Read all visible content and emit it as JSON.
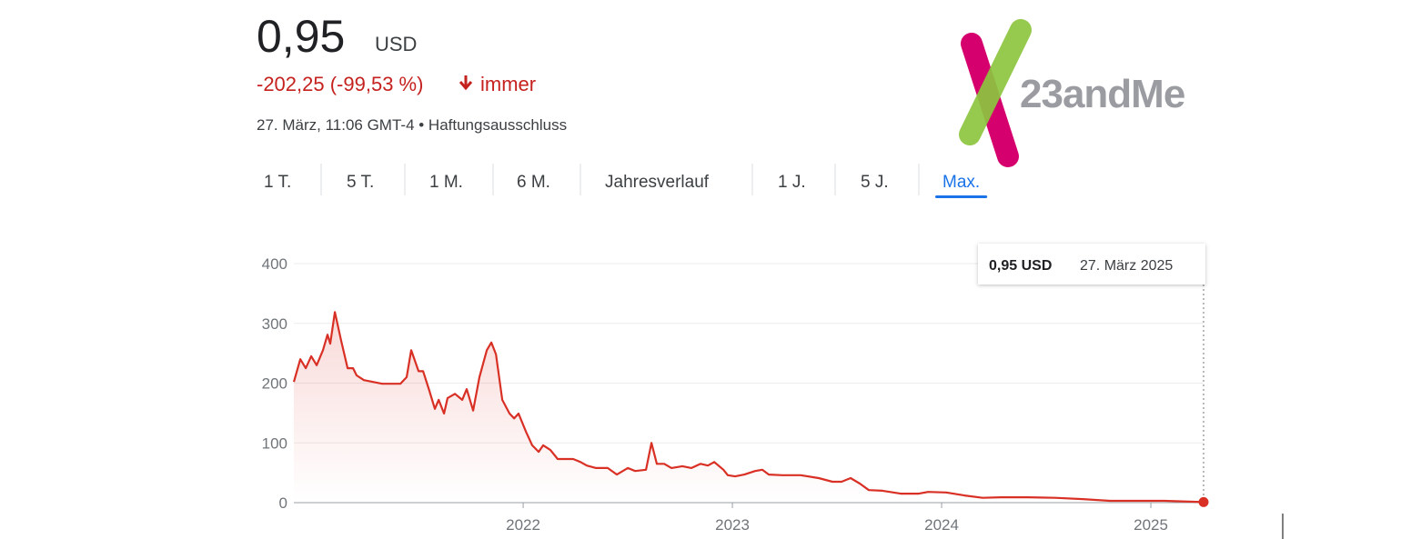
{
  "header": {
    "price": "0,95",
    "currency": "USD",
    "change": "-202,25 (-99,53 %)",
    "period": "immer",
    "timestamp": "27. März, 11:06 GMT-4 • Haftungsausschluss"
  },
  "logo": {
    "text": "23andMe"
  },
  "tabs": [
    "1 T.",
    "5 T.",
    "1 M.",
    "6 M.",
    "Jahresverlauf",
    "1 J.",
    "5 J.",
    "Max."
  ],
  "tooltip": {
    "value": "0,95 USD",
    "date": "27. März 2025"
  },
  "chart_data": {
    "type": "line",
    "series": [
      {
        "name": "23andMe",
        "color": "#d93025",
        "x": [
          2020.904,
          2020.935,
          2020.961,
          2020.987,
          2021.013,
          2021.043,
          2021.065,
          2021.078,
          2021.1,
          2021.13,
          2021.161,
          2021.187,
          2021.204,
          2021.239,
          2021.326,
          2021.413,
          2021.443,
          2021.465,
          2021.5,
          2021.522,
          2021.552,
          2021.578,
          2021.596,
          2021.622,
          2021.639,
          2021.674,
          2021.709,
          2021.73,
          2021.761,
          2021.791,
          2021.826,
          2021.848,
          2021.87,
          2021.9,
          2021.935,
          2021.957,
          2021.978,
          2022.013,
          2022.043,
          2022.074,
          2022.096,
          2022.13,
          2022.165,
          2022.196,
          2022.239,
          2022.274,
          2022.304,
          2022.348,
          2022.404,
          2022.448,
          2022.5,
          2022.535,
          2022.587,
          2022.613,
          2022.639,
          2022.674,
          2022.709,
          2022.761,
          2022.804,
          2022.848,
          2022.883,
          2022.913,
          2022.957,
          2022.978,
          2023.013,
          2023.057,
          2023.109,
          2023.143,
          2023.174,
          2023.239,
          2023.326,
          2023.413,
          2023.478,
          2023.522,
          2023.565,
          2023.609,
          2023.652,
          2023.717,
          2023.804,
          2023.891,
          2023.935,
          2024.022,
          2024.109,
          2024.196,
          2024.283,
          2024.413,
          2024.543,
          2024.674,
          2024.804,
          2024.935,
          2025.065,
          2025.252
        ],
        "values": [
          202,
          240,
          225,
          245,
          230,
          255,
          281,
          266,
          319,
          271,
          225,
          225,
          213,
          205,
          199,
          199,
          210,
          255,
          220,
          220,
          187,
          157,
          172,
          149,
          175,
          182,
          172,
          190,
          154,
          210,
          255,
          268,
          248,
          172,
          149,
          141,
          149,
          119,
          96,
          85,
          96,
          88,
          73,
          73,
          73,
          68,
          62,
          58,
          58,
          47,
          58,
          53,
          55,
          100,
          65,
          65,
          58,
          61,
          58,
          65,
          62,
          68,
          55,
          46,
          44,
          47,
          53,
          55,
          47,
          46,
          46,
          41,
          35,
          35,
          41,
          32,
          21,
          20,
          15,
          15,
          18,
          17,
          12,
          8,
          9,
          9,
          8,
          6,
          3,
          3,
          3,
          0.95
        ]
      }
    ],
    "xlim": [
      2020.904,
      2025.252
    ],
    "xticks": [
      2022,
      2023,
      2024,
      2025
    ],
    "ylim": [
      0,
      400
    ],
    "yticks": [
      0,
      100,
      200,
      300,
      400
    ],
    "grid": true
  }
}
